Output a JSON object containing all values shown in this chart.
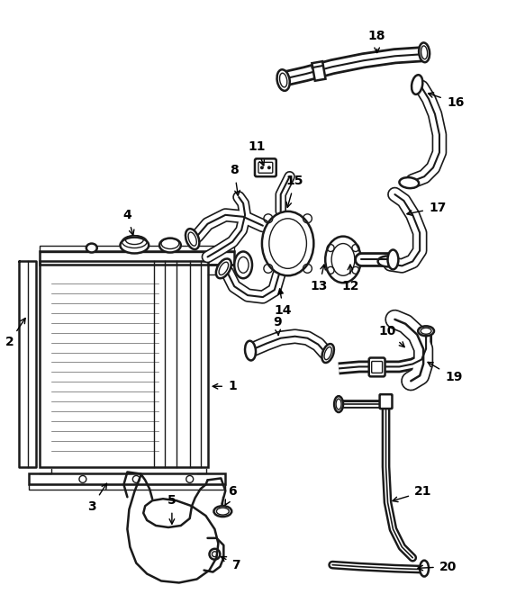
{
  "bg_color": "#ffffff",
  "line_color": "#1a1a1a",
  "fig_width": 5.63,
  "fig_height": 6.8,
  "dpi": 100,
  "lw_hose": 3.5,
  "lw_hose_inner": 1.5,
  "lw_part": 1.8,
  "lw_thin": 1.0,
  "label_fontsize": 10,
  "label_fontsize_sm": 8
}
